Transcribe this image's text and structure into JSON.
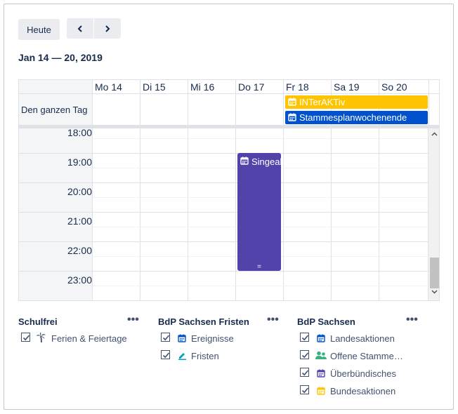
{
  "toolbar": {
    "today_label": "Heute",
    "prev_icon": "chevron-left-icon",
    "next_icon": "chevron-right-icon"
  },
  "range_title": "Jan 14 — 20, 2019",
  "calendar": {
    "days": [
      "Mo 14",
      "Di 15",
      "Mi 16",
      "Do 17",
      "Fr 18",
      "Sa 19",
      "So 20"
    ],
    "allday_label": "Den ganzen Tag",
    "times": [
      "18:00",
      "19:00",
      "20:00",
      "21:00",
      "22:00",
      "23:00"
    ],
    "allday_events": [
      {
        "title": "INTerAKTiv",
        "color": "#ffc400",
        "icon": "calendar-icon"
      },
      {
        "title": "Stammesplanwochenende",
        "color": "#0052cc",
        "icon": "calendar-icon"
      }
    ],
    "timed_events": [
      {
        "title": "Singeabend",
        "color": "#5243aa",
        "icon": "calendar-icon",
        "resize_handle": "="
      }
    ]
  },
  "legends": [
    {
      "title": "Schulfrei",
      "more": "•••",
      "items": [
        {
          "label": "Ferien & Feiertage",
          "icon": "palm-tree-icon",
          "color": "#42526e",
          "checked": true
        }
      ]
    },
    {
      "title": "BdP Sachsen Fristen",
      "more": "•••",
      "items": [
        {
          "label": "Ereignisse",
          "icon": "calendar-icon",
          "color": "#0052cc",
          "checked": true
        },
        {
          "label": "Fristen",
          "icon": "pen-icon",
          "color": "#00a3bf",
          "checked": true
        }
      ]
    },
    {
      "title": "BdP Sachsen",
      "more": "•••",
      "items": [
        {
          "label": "Landesaktionen",
          "icon": "calendar-icon",
          "color": "#0052cc",
          "checked": true
        },
        {
          "label": "Offene Stammesaktionen",
          "icon": "people-icon",
          "color": "#36b37e",
          "checked": true
        },
        {
          "label": "Überbündisches",
          "icon": "calendar-icon",
          "color": "#5243aa",
          "checked": true
        },
        {
          "label": "Bundesaktionen",
          "icon": "calendar-icon",
          "color": "#ffc400",
          "checked": true
        }
      ]
    }
  ]
}
